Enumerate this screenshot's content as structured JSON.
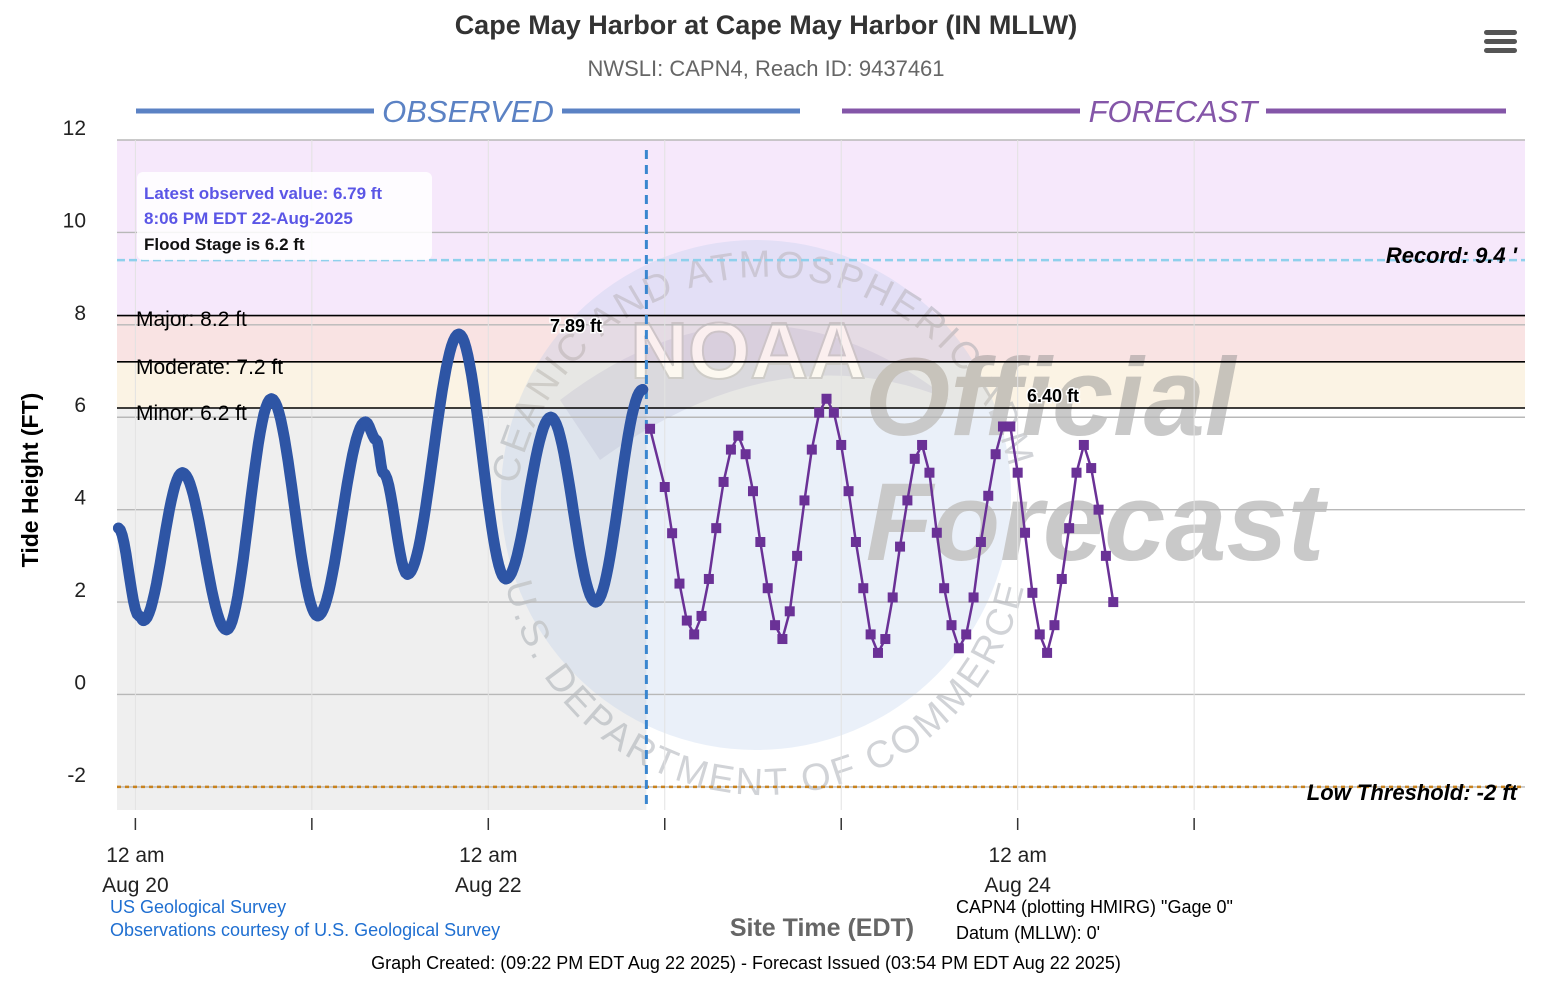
{
  "header": {
    "title": "Cape May Harbor at Cape May Harbor (IN MLLW)",
    "subtitle": "NWSLI: CAPN4, Reach ID: 9437461",
    "menu_icon": "hamburger-menu-icon"
  },
  "sections": {
    "observed_label": "OBSERVED",
    "forecast_label": "FORECAST"
  },
  "info_box": {
    "latest_value": "Latest observed value: 6.79 ft",
    "latest_time": "8:06 PM EDT 22-Aug-2025",
    "flood_stage": "Flood Stage is 6.2 ft"
  },
  "thresholds": {
    "major": "Major: 8.2 ft",
    "moderate": "Moderate: 7.2 ft",
    "minor": "Minor: 6.2 ft",
    "record": "Record: 9.4 '",
    "low": "Low Threshold: -2 ft"
  },
  "peaks": {
    "observed_peak": "7.89 ft",
    "forecast_peak": "6.40 ft"
  },
  "watermark": {
    "seal_top": "NATIONAL OCEANIC AND ATMOSPHERIC ADMINISTRATION",
    "seal_bottom": "U.S. DEPARTMENT OF COMMERCE",
    "seal_center": "NOAA",
    "line1": "Official",
    "line2": "Forecast"
  },
  "footer": {
    "usgs_link": "US Geological Survey",
    "usgs_credit": "Observations courtesy of U.S. Geological Survey",
    "plot_info": "CAPN4 (plotting HMIRG) \"Gage 0\"",
    "datum": "Datum (MLLW): 0'",
    "created": "Graph Created: (09:22 PM EDT Aug 22 2025) - Forecast Issued (03:54 PM EDT Aug 22 2025)"
  },
  "colors": {
    "observed": "#2e55a5",
    "forecast": "#6a3196",
    "record_band": "#f6e8fb",
    "major_band": "#f6e8fb",
    "moderate_band": "#f9e3e3",
    "minor_band": "#fbf3e4",
    "normal_band": "#efefef",
    "record_line": "#8fd0ec",
    "now_line": "#3a86cf",
    "low_line": "#c8821e",
    "info_blue": "#5b56e6"
  },
  "chart_data": {
    "type": "line",
    "title": "Cape May Harbor at Cape May Harbor (IN MLLW)",
    "subtitle": "NWSLI: CAPN4, Reach ID: 9437461",
    "xlabel": "Site Time (EDT)",
    "ylabel": "Tide Height (FT)",
    "ylim": [
      -2.5,
      12
    ],
    "y_ticks": [
      "12",
      "10",
      "8",
      "6",
      "4",
      "2",
      "0",
      "-2"
    ],
    "x_ticks": [
      {
        "line1": "12 am",
        "line2": "Aug 20"
      },
      {
        "line1": "",
        "line2": ""
      },
      {
        "line1": "12 am",
        "line2": "Aug 22"
      },
      {
        "line1": "",
        "line2": ""
      },
      {
        "line1": "",
        "line2": ""
      },
      {
        "line1": "12 am",
        "line2": "Aug 24"
      },
      {
        "line1": "",
        "line2": ""
      }
    ],
    "x_tick_hours": [
      0,
      24,
      48,
      72,
      96,
      120,
      144
    ],
    "x_range_hours": [
      -2.5,
      189
    ],
    "now_hours": 69.5,
    "grid": true,
    "thresholds": {
      "record": 9.4,
      "major": 8.2,
      "moderate": 7.2,
      "minor": 6.2,
      "low": -2
    },
    "series": [
      {
        "name": "OBSERVED",
        "style": "thick-line",
        "points": [
          [
            -2.3,
            3.6
          ],
          [
            0.5,
            1.7
          ],
          [
            1.1,
            1.6
          ],
          [
            6.4,
            4.8
          ],
          [
            12.4,
            1.4
          ],
          [
            18.5,
            6.4
          ],
          [
            24.8,
            1.7
          ],
          [
            31.3,
            5.9
          ],
          [
            32.8,
            5.5
          ],
          [
            33.7,
            4.8
          ],
          [
            37.0,
            2.6
          ],
          [
            44.0,
            7.8
          ],
          [
            50.4,
            2.5
          ],
          [
            56.5,
            6.0
          ],
          [
            62.6,
            2.0
          ],
          [
            69.0,
            6.6
          ]
        ]
      },
      {
        "name": "FORECAST",
        "style": "markers",
        "points": [
          [
            70,
            5.75
          ],
          [
            72,
            4.49
          ],
          [
            73,
            3.49
          ],
          [
            74,
            2.4
          ],
          [
            75,
            1.6
          ],
          [
            76,
            1.3
          ],
          [
            77,
            1.7
          ],
          [
            78,
            2.5
          ],
          [
            79,
            3.6
          ],
          [
            80,
            4.6
          ],
          [
            81,
            5.3
          ],
          [
            82,
            5.6
          ],
          [
            83,
            5.2
          ],
          [
            84,
            4.4
          ],
          [
            85,
            3.3
          ],
          [
            86,
            2.3
          ],
          [
            87,
            1.5
          ],
          [
            88,
            1.2
          ],
          [
            89,
            1.8
          ],
          [
            90,
            3.0
          ],
          [
            91,
            4.2
          ],
          [
            92,
            5.3
          ],
          [
            93,
            6.1
          ],
          [
            94,
            6.4
          ],
          [
            95,
            6.1
          ],
          [
            96,
            5.4
          ],
          [
            97,
            4.4
          ],
          [
            98,
            3.3
          ],
          [
            99,
            2.3
          ],
          [
            100,
            1.3
          ],
          [
            101,
            0.9
          ],
          [
            102,
            1.2
          ],
          [
            103,
            2.1
          ],
          [
            104,
            3.2
          ],
          [
            105,
            4.2
          ],
          [
            106,
            5.1
          ],
          [
            107,
            5.4
          ],
          [
            108,
            4.8
          ],
          [
            109,
            3.5
          ],
          [
            110,
            2.3
          ],
          [
            111,
            1.5
          ],
          [
            112,
            1.0
          ],
          [
            113,
            1.3
          ],
          [
            114,
            2.1
          ],
          [
            115,
            3.3
          ],
          [
            116,
            4.3
          ],
          [
            117,
            5.2
          ],
          [
            118,
            5.8
          ],
          [
            119,
            5.8
          ],
          [
            120,
            4.8
          ],
          [
            121,
            3.5
          ],
          [
            122,
            2.2
          ],
          [
            123,
            1.3
          ],
          [
            124,
            0.9
          ],
          [
            125,
            1.5
          ],
          [
            126,
            2.5
          ],
          [
            127,
            3.6
          ],
          [
            128,
            4.8
          ],
          [
            129,
            5.4
          ],
          [
            130,
            4.9
          ],
          [
            131,
            4.0
          ],
          [
            132,
            3.0
          ],
          [
            133,
            2.0
          ]
        ]
      }
    ]
  }
}
